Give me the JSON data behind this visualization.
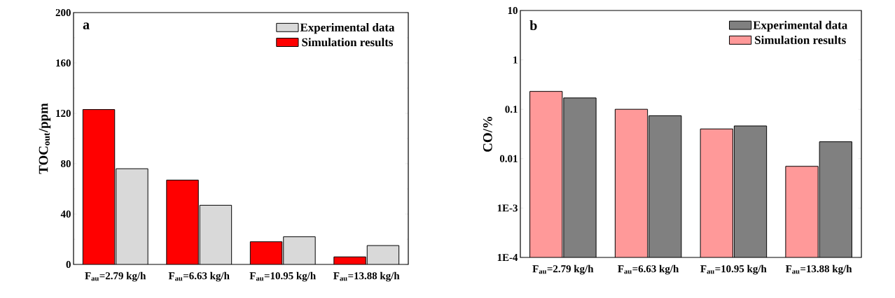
{
  "chart_data": [
    {
      "type": "bar",
      "ylabel": "TOC$_{out}$/ppm",
      "annotations": [
        "a"
      ],
      "categories": [
        "F$_{au}$=2.79 kg/h",
        "F$_{au}$=6.63 kg/h",
        "F$_{au}$=10.95 kg/h",
        "F$_{au}$=13.88 kg/h"
      ],
      "series": [
        {
          "name": "Simulation results",
          "color": "#ff0000",
          "values": [
            123,
            67,
            18,
            6
          ]
        },
        {
          "name": "Experimental data",
          "color": "#d9d9d9",
          "values": [
            76,
            47,
            22,
            15
          ]
        }
      ],
      "ylim": [
        0,
        200
      ],
      "yticks": [
        0,
        40,
        80,
        120,
        160,
        200
      ],
      "legend": "top right"
    },
    {
      "type": "bar",
      "ylabel": "CO/%",
      "annotations": [
        "b"
      ],
      "log": true,
      "categories": [
        "F$_{au}$=2.79 kg/h",
        "F$_{au}$=6.63 kg/h",
        "F$_{au}$=10.95 kg/h",
        "F$_{au}$=13.88 kg/h"
      ],
      "series": [
        {
          "name": "Simulation results",
          "color": "#ff9999",
          "values": [
            0.23,
            0.1,
            0.04,
            0.007
          ]
        },
        {
          "name": "Experimental data",
          "color": "#808080",
          "values": [
            0.17,
            0.074,
            0.046,
            0.022
          ]
        }
      ],
      "ylim": [
        0.0001,
        10
      ],
      "yticks": [
        {
          "value": 0.0001,
          "label": "1E-4"
        },
        {
          "value": 0.001,
          "label": "1E-3"
        },
        0.01,
        0.1,
        1,
        10
      ],
      "legend": "top right"
    }
  ]
}
